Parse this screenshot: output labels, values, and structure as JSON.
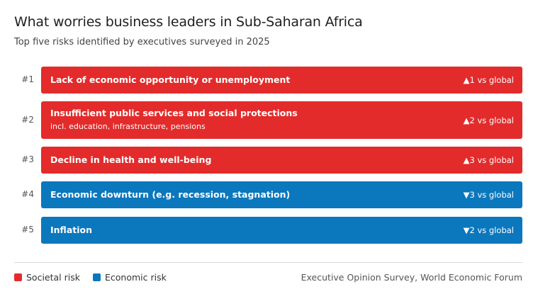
{
  "header": {
    "title": "What worries business leaders in Sub-Saharan Africa",
    "subtitle": "Top five risks identified by executives surveyed in 2025"
  },
  "colors": {
    "societal": "#e32b2b",
    "economic": "#0b77bd"
  },
  "chart_data": {
    "type": "table",
    "title": "What worries business leaders in Sub-Saharan Africa",
    "subtitle": "Top five risks identified by executives surveyed in 2025",
    "rows": [
      {
        "rank": "#1",
        "risk": "Lack of economic opportunity or unemployment",
        "note": "",
        "category": "societal",
        "change": "▲1 vs global"
      },
      {
        "rank": "#2",
        "risk": "Insufficient public services and social protections",
        "note": "incl. education, infrastructure, pensions",
        "category": "societal",
        "change": "▲2 vs global"
      },
      {
        "rank": "#3",
        "risk": "Decline in health and well-being",
        "note": "",
        "category": "societal",
        "change": "▲3 vs global"
      },
      {
        "rank": "#4",
        "risk": "Economic downturn (e.g. recession, stagnation)",
        "note": "",
        "category": "economic",
        "change": "▼3 vs global"
      },
      {
        "rank": "#5",
        "risk": "Inflation",
        "note": "",
        "category": "economic",
        "change": "▼2 vs global"
      }
    ]
  },
  "legend": [
    {
      "label": "Societal risk",
      "category": "societal"
    },
    {
      "label": "Economic risk",
      "category": "economic"
    }
  ],
  "source": "Executive Opinion Survey, World Economic Forum"
}
